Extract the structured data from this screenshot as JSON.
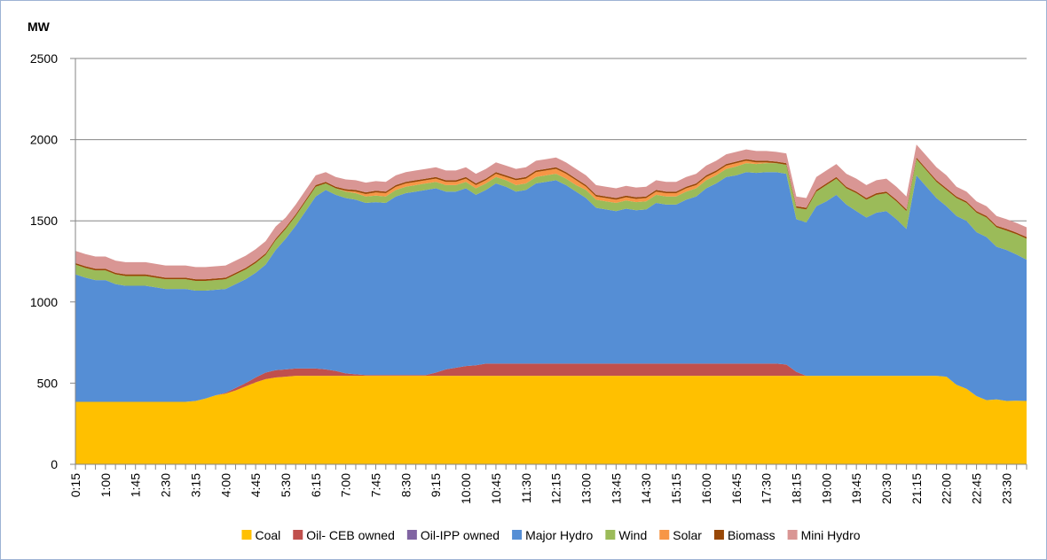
{
  "chart_data": {
    "type": "stacked-area",
    "y_label": "MW",
    "categories": [
      "0:15",
      null,
      null,
      "1:00",
      null,
      null,
      "1:45",
      null,
      null,
      "2:30",
      null,
      null,
      "3:15",
      null,
      null,
      "4:00",
      null,
      null,
      "4:45",
      null,
      null,
      "5:30",
      null,
      null,
      "6:15",
      null,
      null,
      "7:00",
      null,
      null,
      "7:45",
      null,
      null,
      "8:30",
      null,
      null,
      "9:15",
      null,
      null,
      "10:00",
      null,
      null,
      "10:45",
      null,
      null,
      "11:30",
      null,
      null,
      "12:15",
      null,
      null,
      "13:00",
      null,
      null,
      "13:45",
      null,
      null,
      "14:30",
      null,
      null,
      "15:15",
      null,
      null,
      "16:00",
      null,
      null,
      "16:45",
      null,
      null,
      "17:30",
      null,
      null,
      "18:15",
      null,
      null,
      "19:00",
      null,
      null,
      "19:45",
      null,
      null,
      "20:30",
      null,
      null,
      "21:15",
      null,
      null,
      "22:00",
      null,
      null,
      "22:45",
      null,
      null,
      "23:30",
      null,
      null
    ],
    "ylim": [
      0,
      2500
    ],
    "yticks": [
      0,
      500,
      1000,
      1500,
      2000,
      2500
    ],
    "grid": true,
    "legend": "bottom",
    "series": [
      {
        "name": "Coal",
        "color": "#ffc000",
        "values": [
          385,
          385,
          385,
          385,
          385,
          385,
          385,
          385,
          385,
          385,
          385,
          385,
          390,
          405,
          425,
          435,
          455,
          480,
          505,
          525,
          535,
          540,
          545,
          545,
          545,
          545,
          545,
          545,
          545,
          545,
          545,
          545,
          545,
          545,
          545,
          545,
          545,
          545,
          545,
          545,
          545,
          545,
          545,
          545,
          545,
          545,
          545,
          545,
          545,
          545,
          545,
          545,
          545,
          545,
          545,
          545,
          545,
          545,
          545,
          545,
          545,
          545,
          545,
          545,
          545,
          545,
          545,
          545,
          545,
          545,
          545,
          545,
          545,
          545,
          545,
          545,
          545,
          545,
          545,
          545,
          545,
          545,
          545,
          545,
          545,
          545,
          545,
          540,
          490,
          465,
          420,
          395,
          400,
          390,
          392,
          390
        ]
      },
      {
        "name": "Oil- CEB owned",
        "color": "#c0504d",
        "values": [
          0,
          0,
          0,
          0,
          0,
          0,
          0,
          0,
          0,
          0,
          0,
          0,
          0,
          0,
          0,
          5,
          15,
          20,
          30,
          40,
          45,
          45,
          45,
          45,
          45,
          40,
          30,
          15,
          10,
          5,
          5,
          5,
          5,
          5,
          5,
          5,
          20,
          40,
          50,
          60,
          65,
          75,
          75,
          75,
          75,
          75,
          75,
          75,
          75,
          75,
          75,
          75,
          75,
          75,
          75,
          75,
          75,
          75,
          75,
          75,
          75,
          75,
          75,
          75,
          75,
          75,
          75,
          75,
          75,
          75,
          75,
          70,
          25,
          0,
          0,
          0,
          0,
          0,
          0,
          0,
          0,
          0,
          0,
          0,
          0,
          0,
          0,
          0,
          0,
          0,
          0,
          0,
          0,
          0,
          0,
          0
        ]
      },
      {
        "name": "Oil-IPP owned",
        "color": "#8064a2",
        "values": [
          0,
          0,
          0,
          0,
          0,
          0,
          0,
          0,
          0,
          0,
          0,
          0,
          0,
          0,
          0,
          0,
          0,
          0,
          0,
          0,
          0,
          0,
          0,
          0,
          0,
          0,
          0,
          0,
          0,
          0,
          0,
          0,
          0,
          0,
          0,
          0,
          0,
          0,
          0,
          0,
          0,
          0,
          0,
          0,
          0,
          0,
          0,
          0,
          0,
          0,
          0,
          0,
          0,
          0,
          0,
          0,
          0,
          0,
          0,
          0,
          0,
          0,
          0,
          0,
          0,
          0,
          0,
          0,
          0,
          0,
          0,
          0,
          0,
          0,
          0,
          0,
          0,
          0,
          0,
          0,
          0,
          0,
          0,
          0,
          0,
          0,
          0,
          0,
          0,
          0,
          0,
          0,
          0,
          0,
          0,
          0
        ]
      },
      {
        "name": "Major Hydro",
        "color": "#558ed5",
        "values": [
          785,
          765,
          750,
          750,
          725,
          715,
          715,
          715,
          705,
          695,
          695,
          695,
          680,
          665,
          650,
          640,
          640,
          640,
          645,
          665,
          740,
          805,
          880,
          970,
          1060,
          1105,
          1085,
          1080,
          1075,
          1060,
          1065,
          1060,
          1100,
          1120,
          1130,
          1140,
          1135,
          1095,
          1085,
          1095,
          1050,
          1070,
          1110,
          1090,
          1060,
          1070,
          1110,
          1120,
          1130,
          1100,
          1060,
          1020,
          960,
          950,
          940,
          955,
          945,
          950,
          990,
          980,
          980,
          1010,
          1030,
          1080,
          1110,
          1150,
          1160,
          1180,
          1175,
          1180,
          1180,
          1175,
          940,
          945,
          1045,
          1075,
          1115,
          1055,
          1015,
          975,
          1005,
          1015,
          965,
          905,
          1235,
          1165,
          1095,
          1050,
          1040,
          1035,
          1010,
          1005,
          940,
          930,
          900,
          870
        ]
      },
      {
        "name": "Wind",
        "color": "#9bbb59",
        "values": [
          60,
          60,
          60,
          60,
          60,
          60,
          60,
          60,
          60,
          60,
          60,
          60,
          60,
          60,
          60,
          60,
          60,
          60,
          60,
          60,
          60,
          60,
          60,
          60,
          60,
          40,
          40,
          40,
          40,
          40,
          40,
          40,
          40,
          40,
          40,
          40,
          40,
          40,
          40,
          40,
          40,
          40,
          40,
          40,
          40,
          40,
          40,
          40,
          40,
          40,
          40,
          50,
          50,
          50,
          50,
          50,
          50,
          50,
          50,
          50,
          50,
          50,
          50,
          50,
          50,
          50,
          55,
          55,
          55,
          55,
          55,
          55,
          70,
          80,
          90,
          100,
          100,
          100,
          110,
          110,
          110,
          110,
          110,
          110,
          100,
          100,
          100,
          100,
          110,
          110,
          120,
          120,
          120,
          120,
          125,
          130
        ]
      },
      {
        "name": "Solar",
        "color": "#f79646",
        "values": [
          0,
          0,
          0,
          0,
          0,
          0,
          0,
          0,
          0,
          0,
          0,
          0,
          0,
          0,
          0,
          0,
          0,
          0,
          0,
          0,
          0,
          0,
          0,
          0,
          0,
          0,
          0,
          5,
          10,
          15,
          20,
          20,
          20,
          20,
          20,
          20,
          20,
          20,
          20,
          20,
          20,
          20,
          20,
          20,
          30,
          30,
          30,
          30,
          30,
          30,
          30,
          20,
          20,
          20,
          20,
          20,
          20,
          20,
          20,
          20,
          20,
          20,
          20,
          20,
          20,
          20,
          20,
          15,
          10,
          5,
          0,
          0,
          0,
          0,
          0,
          0,
          0,
          0,
          0,
          0,
          0,
          0,
          0,
          0,
          0,
          0,
          0,
          0,
          0,
          0,
          0,
          0,
          0,
          0,
          0,
          0
        ]
      },
      {
        "name": "Biomass",
        "color": "#984807",
        "values": [
          10,
          10,
          10,
          10,
          10,
          10,
          10,
          10,
          10,
          10,
          10,
          10,
          10,
          10,
          10,
          10,
          10,
          10,
          10,
          10,
          10,
          10,
          10,
          10,
          10,
          10,
          10,
          10,
          10,
          10,
          10,
          10,
          10,
          10,
          10,
          10,
          10,
          10,
          10,
          10,
          10,
          10,
          10,
          10,
          10,
          10,
          10,
          10,
          10,
          10,
          10,
          10,
          10,
          10,
          10,
          10,
          10,
          10,
          10,
          10,
          10,
          10,
          10,
          10,
          10,
          10,
          10,
          10,
          10,
          10,
          10,
          10,
          10,
          10,
          10,
          10,
          10,
          10,
          10,
          10,
          10,
          10,
          10,
          10,
          10,
          10,
          10,
          10,
          10,
          10,
          10,
          10,
          10,
          10,
          10,
          10
        ]
      },
      {
        "name": "Mini Hydro",
        "color": "#d99694",
        "values": [
          75,
          75,
          75,
          75,
          75,
          75,
          75,
          75,
          75,
          75,
          75,
          75,
          75,
          75,
          75,
          75,
          75,
          75,
          75,
          75,
          75,
          60,
          60,
          60,
          60,
          60,
          60,
          60,
          60,
          60,
          60,
          60,
          60,
          60,
          60,
          60,
          60,
          60,
          60,
          60,
          60,
          60,
          60,
          60,
          60,
          60,
          60,
          60,
          60,
          60,
          60,
          60,
          60,
          60,
          60,
          60,
          60,
          60,
          60,
          60,
          60,
          60,
          60,
          60,
          60,
          60,
          60,
          60,
          60,
          60,
          60,
          60,
          60,
          60,
          80,
          80,
          80,
          80,
          80,
          80,
          80,
          80,
          80,
          80,
          80,
          80,
          80,
          80,
          60,
          60,
          60,
          60,
          60,
          60,
          60,
          60
        ]
      }
    ]
  }
}
